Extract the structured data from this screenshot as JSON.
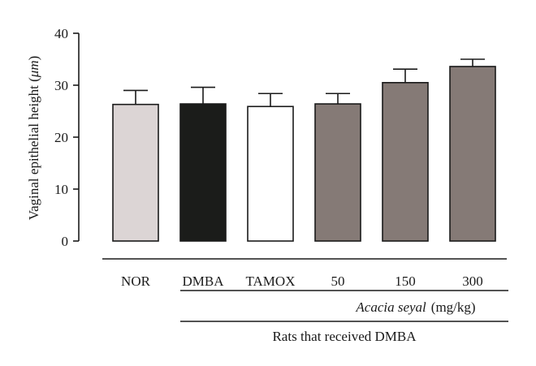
{
  "chart_data": {
    "type": "bar",
    "ylabel_prefix": "Vaginal epithelial height (",
    "ylabel_unit": "μm",
    "ylabel_suffix": ")",
    "ylim": [
      0,
      40
    ],
    "yticks": [
      "0",
      "10",
      "20",
      "30",
      "40"
    ],
    "categories": [
      "NOR",
      "DMBA",
      "TAMOX",
      "50",
      "150",
      "300"
    ],
    "values": [
      26.3,
      26.4,
      25.9,
      26.4,
      30.5,
      33.6
    ],
    "errors": [
      2.7,
      3.2,
      2.5,
      2.0,
      2.6,
      1.4
    ],
    "colors": [
      "#dcd5d5",
      "#1b1c1a",
      "#ffffff",
      "#857a76",
      "#857a76",
      "#857a76"
    ],
    "group_label_italic": "Acacia seyal",
    "group_label_unit": "(mg/kg)",
    "outer_group_label": "Rats that received DMBA"
  }
}
